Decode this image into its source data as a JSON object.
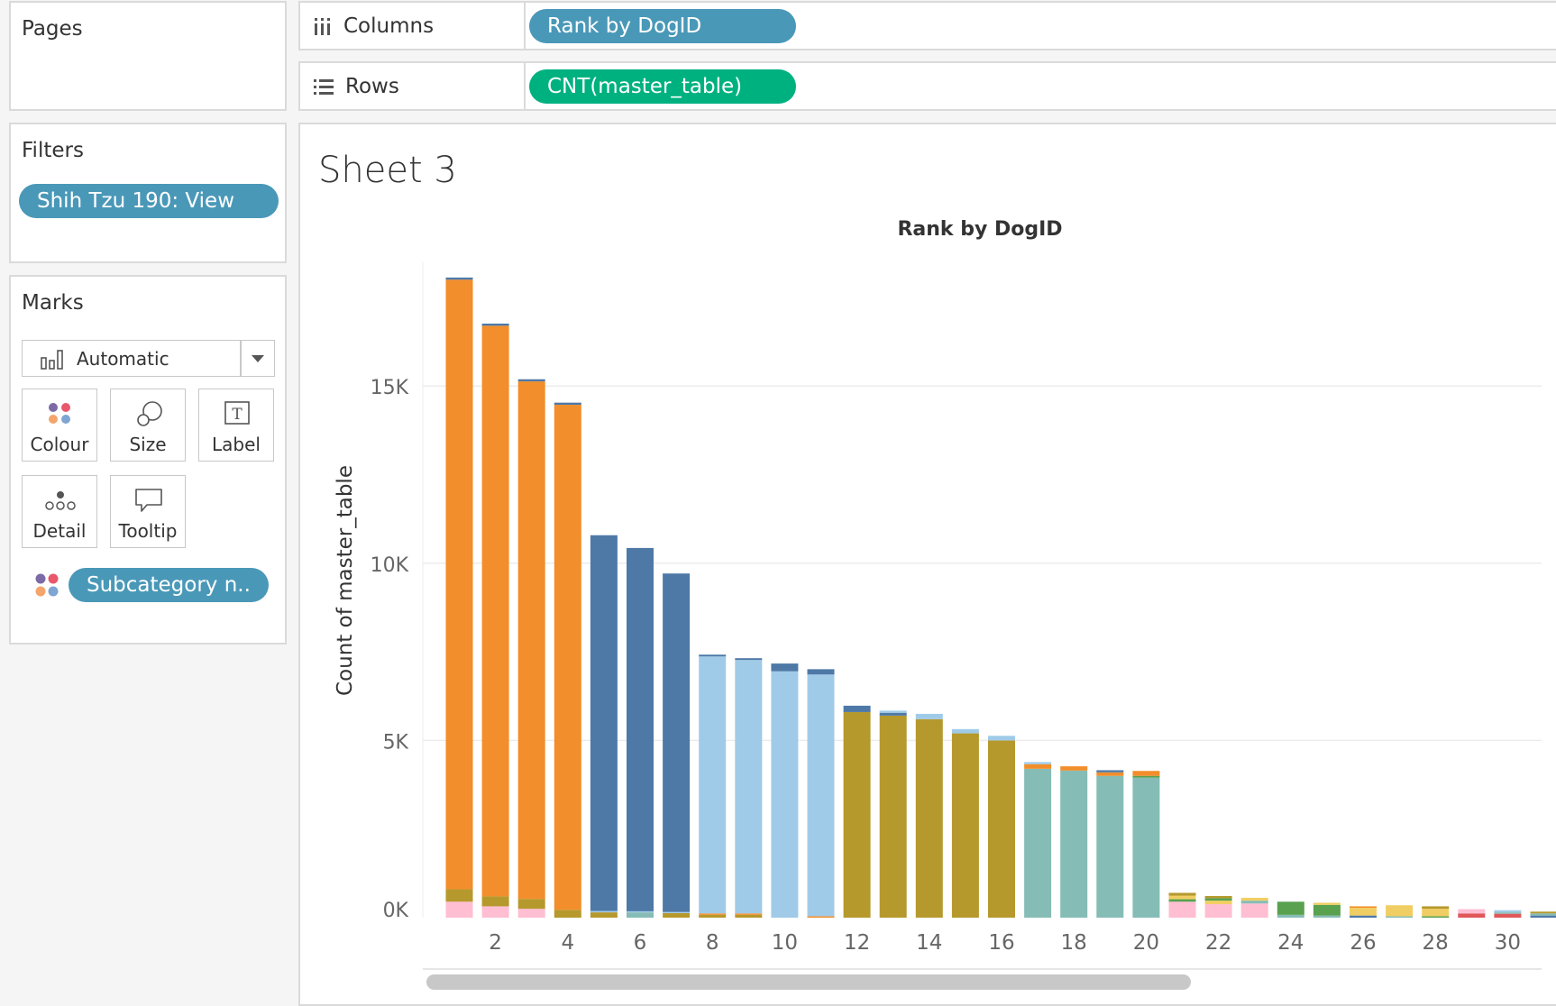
{
  "pages": {
    "title": "Pages"
  },
  "filters": {
    "title": "Filters",
    "pill": "Shih Tzu 190: View"
  },
  "marks": {
    "title": "Marks",
    "mark_type": "Automatic",
    "buttons": [
      "Colour",
      "Size",
      "Label",
      "Detail",
      "Tooltip"
    ],
    "colour_pill": "Subcategory n.."
  },
  "shelves": {
    "columns_label": "Columns",
    "columns_pill": "Rank by DogID",
    "rows_label": "Rows",
    "rows_pill": "CNT(master_table)"
  },
  "sheet": {
    "title": "Sheet 3"
  },
  "colors": {
    "orange": "#f28e2b",
    "dark_blue": "#4e79a7",
    "light_blue": "#a0cbe8",
    "olive": "#b6992d",
    "teal": "#86bcb6",
    "pink": "#ffbed2",
    "green": "#59a14f",
    "yellow": "#f1ce63",
    "red": "#e15759",
    "pill_blue": "#4a98b8",
    "pill_green": "#00b180"
  },
  "chart_data": {
    "type": "bar",
    "stacked": true,
    "title": "Rank by DogID",
    "ylabel": "Count of master_table",
    "ylim": [
      0,
      18500
    ],
    "yticks": [
      0,
      5000,
      10000,
      15000
    ],
    "ytick_labels": [
      "0K",
      "5K",
      "10K",
      "15K"
    ],
    "xticks": [
      2,
      4,
      6,
      8,
      10,
      12,
      14,
      16,
      18,
      20,
      22,
      24,
      26,
      28,
      30
    ],
    "categories": [
      1,
      2,
      3,
      4,
      5,
      6,
      7,
      8,
      9,
      10,
      11,
      12,
      13,
      14,
      15,
      16,
      17,
      18,
      19,
      20,
      21,
      22,
      23,
      24,
      25,
      26,
      27,
      28,
      29,
      30,
      31
    ],
    "bars": [
      {
        "x": 1,
        "segments": [
          [
            "pink",
            450
          ],
          [
            "olive",
            350
          ],
          [
            "orange",
            17200
          ],
          [
            "dark_blue",
            60
          ]
        ]
      },
      {
        "x": 2,
        "segments": [
          [
            "pink",
            320
          ],
          [
            "olive",
            280
          ],
          [
            "orange",
            16100
          ],
          [
            "dark_blue",
            60
          ]
        ]
      },
      {
        "x": 3,
        "segments": [
          [
            "pink",
            250
          ],
          [
            "olive",
            280
          ],
          [
            "orange",
            14600
          ],
          [
            "dark_blue",
            60
          ]
        ]
      },
      {
        "x": 4,
        "segments": [
          [
            "olive",
            220
          ],
          [
            "orange",
            14250
          ],
          [
            "dark_blue",
            60
          ]
        ]
      },
      {
        "x": 5,
        "segments": [
          [
            "olive",
            150
          ],
          [
            "light_blue",
            40
          ],
          [
            "dark_blue",
            10600
          ]
        ]
      },
      {
        "x": 6,
        "segments": [
          [
            "teal",
            150
          ],
          [
            "light_blue",
            30
          ],
          [
            "dark_blue",
            10250
          ]
        ]
      },
      {
        "x": 7,
        "segments": [
          [
            "olive",
            130
          ],
          [
            "light_blue",
            30
          ],
          [
            "dark_blue",
            9550
          ]
        ]
      },
      {
        "x": 8,
        "segments": [
          [
            "olive",
            80
          ],
          [
            "orange",
            40
          ],
          [
            "light_blue",
            7250
          ],
          [
            "dark_blue",
            50
          ]
        ]
      },
      {
        "x": 9,
        "segments": [
          [
            "olive",
            80
          ],
          [
            "orange",
            40
          ],
          [
            "light_blue",
            7150
          ],
          [
            "dark_blue",
            50
          ]
        ]
      },
      {
        "x": 10,
        "segments": [
          [
            "light_blue",
            6950
          ],
          [
            "dark_blue",
            220
          ]
        ]
      },
      {
        "x": 11,
        "segments": [
          [
            "orange",
            40
          ],
          [
            "light_blue",
            6820
          ],
          [
            "dark_blue",
            150
          ]
        ]
      },
      {
        "x": 12,
        "segments": [
          [
            "olive",
            5800
          ],
          [
            "dark_blue",
            180
          ]
        ]
      },
      {
        "x": 13,
        "segments": [
          [
            "olive",
            5700
          ],
          [
            "dark_blue",
            80
          ],
          [
            "light_blue",
            60
          ]
        ]
      },
      {
        "x": 14,
        "segments": [
          [
            "olive",
            5600
          ],
          [
            "light_blue",
            150
          ]
        ]
      },
      {
        "x": 15,
        "segments": [
          [
            "olive",
            5200
          ],
          [
            "light_blue",
            120
          ]
        ]
      },
      {
        "x": 16,
        "segments": [
          [
            "olive",
            5000
          ],
          [
            "light_blue",
            130
          ]
        ]
      },
      {
        "x": 17,
        "segments": [
          [
            "teal",
            4200
          ],
          [
            "orange",
            130
          ],
          [
            "light_blue",
            60
          ]
        ]
      },
      {
        "x": 18,
        "segments": [
          [
            "teal",
            4150
          ],
          [
            "orange",
            120
          ]
        ]
      },
      {
        "x": 19,
        "segments": [
          [
            "teal",
            4000
          ],
          [
            "orange",
            100
          ],
          [
            "dark_blue",
            60
          ]
        ]
      },
      {
        "x": 20,
        "segments": [
          [
            "teal",
            3950
          ],
          [
            "green",
            50
          ],
          [
            "orange",
            140
          ]
        ]
      },
      {
        "x": 21,
        "segments": [
          [
            "pink",
            450
          ],
          [
            "green",
            70
          ],
          [
            "yellow",
            100
          ],
          [
            "olive",
            80
          ]
        ]
      },
      {
        "x": 22,
        "segments": [
          [
            "pink",
            380
          ],
          [
            "yellow",
            100
          ],
          [
            "green",
            70
          ],
          [
            "olive",
            60
          ]
        ]
      },
      {
        "x": 23,
        "segments": [
          [
            "pink",
            400
          ],
          [
            "teal",
            80
          ],
          [
            "yellow",
            80
          ]
        ]
      },
      {
        "x": 24,
        "segments": [
          [
            "teal",
            80
          ],
          [
            "green",
            370
          ]
        ]
      },
      {
        "x": 25,
        "segments": [
          [
            "teal",
            60
          ],
          [
            "green",
            300
          ],
          [
            "yellow",
            60
          ]
        ]
      },
      {
        "x": 26,
        "segments": [
          [
            "dark_blue",
            60
          ],
          [
            "yellow",
            220
          ],
          [
            "orange",
            40
          ]
        ]
      },
      {
        "x": 27,
        "segments": [
          [
            "teal",
            40
          ],
          [
            "yellow",
            310
          ]
        ]
      },
      {
        "x": 28,
        "segments": [
          [
            "green",
            40
          ],
          [
            "yellow",
            210
          ],
          [
            "olive",
            70
          ]
        ]
      },
      {
        "x": 29,
        "segments": [
          [
            "red",
            120
          ],
          [
            "pink",
            120
          ]
        ]
      },
      {
        "x": 30,
        "segments": [
          [
            "red",
            110
          ],
          [
            "teal",
            40
          ],
          [
            "light_blue",
            60
          ]
        ]
      },
      {
        "x": 31,
        "segments": [
          [
            "dark_blue",
            60
          ],
          [
            "teal",
            60
          ],
          [
            "olive",
            50
          ]
        ]
      }
    ]
  }
}
